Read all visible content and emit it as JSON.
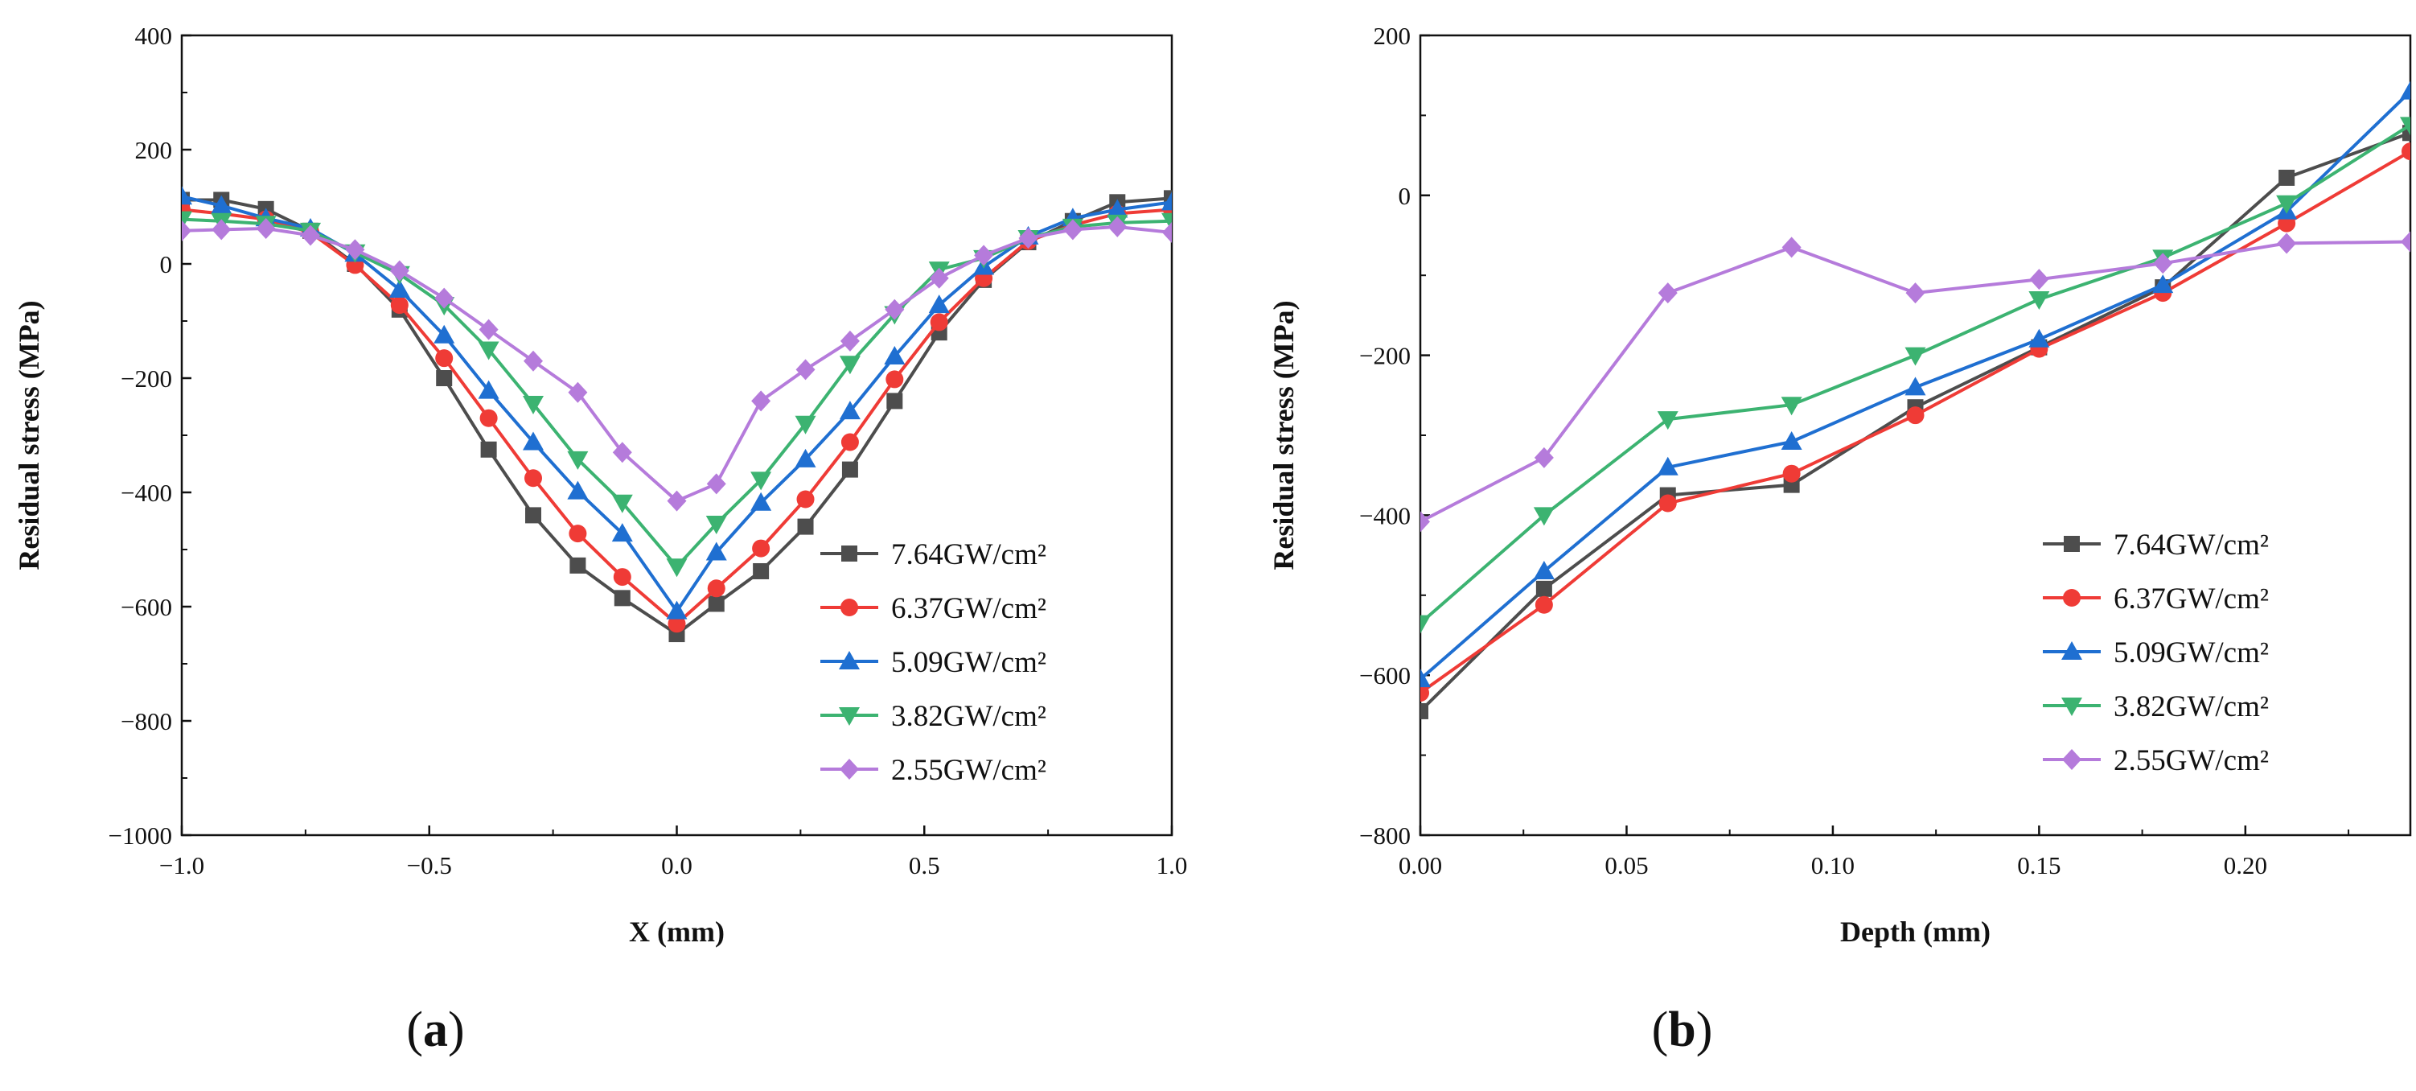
{
  "chart_data": [
    {
      "type": "line",
      "panel_label": "a",
      "title": "",
      "xlabel": "X (mm)",
      "ylabel": "Residual stress (MPa)",
      "xlim": [
        -1.0,
        1.0
      ],
      "ylim": [
        -1000,
        400
      ],
      "xticks": [
        "−1.0",
        "−0.5",
        "0.0",
        "0.5",
        "1.0"
      ],
      "xtick_values": [
        -1.0,
        -0.5,
        0.0,
        0.5,
        1.0
      ],
      "yticks": [
        "−1000",
        "−800",
        "−600",
        "−400",
        "−200",
        "0",
        "200",
        "400"
      ],
      "ytick_values": [
        -1000,
        -800,
        -600,
        -400,
        -200,
        0,
        200,
        400
      ],
      "legend_position": "bottom-right",
      "grid": false,
      "x": [
        -1.0,
        -0.92,
        -0.83,
        -0.74,
        -0.65,
        -0.56,
        -0.47,
        -0.38,
        -0.29,
        -0.2,
        -0.11,
        0.0,
        0.08,
        0.17,
        0.26,
        0.35,
        0.44,
        0.53,
        0.62,
        0.71,
        0.8,
        0.89,
        1.0
      ],
      "series": [
        {
          "name": "7.64GW/cm²",
          "color": "#4d4d4d",
          "marker": "square",
          "values": [
            112,
            112,
            96,
            58,
            0,
            -80,
            -200,
            -325,
            -440,
            -528,
            -585,
            -648,
            -595,
            -538,
            -460,
            -360,
            -240,
            -120,
            -28,
            38,
            75,
            108,
            115
          ]
        },
        {
          "name": "6.37GW/cm²",
          "color": "#ef3b36",
          "marker": "circle",
          "values": [
            95,
            88,
            78,
            55,
            -2,
            -72,
            -165,
            -270,
            -375,
            -472,
            -548,
            -630,
            -568,
            -498,
            -412,
            -312,
            -202,
            -102,
            -25,
            40,
            68,
            88,
            95
          ]
        },
        {
          "name": "5.09GW/cm²",
          "color": "#1f6fd1",
          "marker": "triangle-up",
          "values": [
            118,
            102,
            80,
            62,
            18,
            -45,
            -125,
            -222,
            -312,
            -398,
            -472,
            -608,
            -505,
            -418,
            -342,
            -258,
            -162,
            -72,
            -5,
            48,
            80,
            95,
            108
          ]
        },
        {
          "name": "3.82GW/cm²",
          "color": "#3cb371",
          "marker": "triangle-down",
          "values": [
            78,
            75,
            70,
            58,
            20,
            -18,
            -72,
            -150,
            -245,
            -342,
            -418,
            -530,
            -455,
            -378,
            -280,
            -175,
            -88,
            -10,
            10,
            45,
            65,
            72,
            75
          ]
        },
        {
          "name": "2.55GW/cm²",
          "color": "#b57bdb",
          "marker": "diamond",
          "values": [
            58,
            60,
            62,
            50,
            25,
            -12,
            -60,
            -115,
            -170,
            -225,
            -330,
            -415,
            -385,
            -240,
            -185,
            -135,
            -80,
            -25,
            15,
            45,
            60,
            65,
            55
          ]
        }
      ]
    },
    {
      "type": "line",
      "panel_label": "b",
      "title": "",
      "xlabel": "Depth (mm)",
      "ylabel": "Residual stress (MPa)",
      "xlim": [
        0.0,
        0.24
      ],
      "ylim": [
        -800,
        200
      ],
      "xticks": [
        "0.00",
        "0.05",
        "0.10",
        "0.15",
        "0.20"
      ],
      "xtick_values": [
        0.0,
        0.05,
        0.1,
        0.15,
        0.2
      ],
      "yticks": [
        "−800",
        "−600",
        "−400",
        "−200",
        "0",
        "200"
      ],
      "ytick_values": [
        -800,
        -600,
        -400,
        -200,
        0,
        200
      ],
      "legend_position": "bottom-right",
      "grid": false,
      "x": [
        0.0,
        0.03,
        0.06,
        0.09,
        0.12,
        0.15,
        0.18,
        0.21,
        0.24
      ],
      "series": [
        {
          "name": "7.64GW/cm²",
          "color": "#4d4d4d",
          "marker": "square",
          "values": [
            -645,
            -492,
            -375,
            -362,
            -265,
            -190,
            -115,
            22,
            78
          ]
        },
        {
          "name": "6.37GW/cm²",
          "color": "#ef3b36",
          "marker": "circle",
          "values": [
            -622,
            -512,
            -385,
            -348,
            -275,
            -192,
            -122,
            -35,
            55
          ]
        },
        {
          "name": "5.09GW/cm²",
          "color": "#1f6fd1",
          "marker": "triangle-up",
          "values": [
            -605,
            -470,
            -340,
            -308,
            -240,
            -180,
            -112,
            -20,
            130
          ]
        },
        {
          "name": "3.82GW/cm²",
          "color": "#3cb371",
          "marker": "triangle-down",
          "values": [
            -535,
            -400,
            -280,
            -262,
            -200,
            -130,
            -78,
            -10,
            88
          ]
        },
        {
          "name": "2.55GW/cm²",
          "color": "#b57bdb",
          "marker": "diamond",
          "values": [
            -408,
            -328,
            -122,
            -65,
            -122,
            -105,
            -85,
            -60,
            -58
          ]
        }
      ]
    }
  ]
}
